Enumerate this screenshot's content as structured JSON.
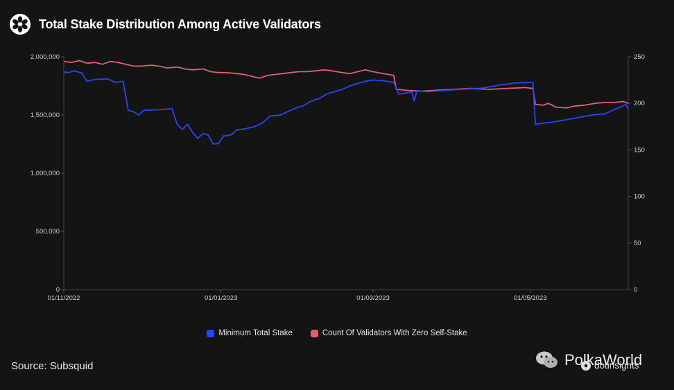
{
  "header": {
    "title": "Total Stake Distribution Among Active Validators",
    "logo_icon": "flower-icon"
  },
  "source": "Source: Subsquid",
  "watermark": {
    "text": "PolkaWorld",
    "icon": "wechat-icon"
  },
  "brand": {
    "text": "dotinsights",
    "icon": "flower-icon"
  },
  "chart_data": {
    "type": "line",
    "x_start": "2022-11-01",
    "xticks": [
      "01/11/2022",
      "01/01/2023",
      "01/03/2023",
      "01/05/2023"
    ],
    "xtick_dates": [
      "2022-11-01",
      "2023-01-01",
      "2023-03-01",
      "2023-05-01"
    ],
    "x_end": "2023-06-08",
    "y_left": {
      "ylim": [
        0,
        2000000
      ],
      "ticks": [
        "0",
        "500,000",
        "1,000,000",
        "1,500,000",
        "2,000,000"
      ]
    },
    "y_right": {
      "ylim": [
        0,
        250
      ],
      "ticks": [
        "0",
        "50",
        "100",
        "150",
        "200",
        "250"
      ]
    },
    "grid": false,
    "legend_position": "bottom",
    "series": [
      {
        "name": "Minimum Total Stake",
        "axis": "left",
        "color": "#2846f0",
        "points": [
          [
            "2022-11-01",
            1870000
          ],
          [
            "2022-11-03",
            1865000
          ],
          [
            "2022-11-05",
            1880000
          ],
          [
            "2022-11-08",
            1860000
          ],
          [
            "2022-11-10",
            1790000
          ],
          [
            "2022-11-13",
            1805000
          ],
          [
            "2022-11-18",
            1810000
          ],
          [
            "2022-11-21",
            1780000
          ],
          [
            "2022-11-24",
            1790000
          ],
          [
            "2022-11-26",
            1540000
          ],
          [
            "2022-11-28",
            1530000
          ],
          [
            "2022-11-30",
            1500000
          ],
          [
            "2022-12-02",
            1540000
          ],
          [
            "2022-12-08",
            1545000
          ],
          [
            "2022-12-13",
            1555000
          ],
          [
            "2022-12-15",
            1420000
          ],
          [
            "2022-12-17",
            1375000
          ],
          [
            "2022-12-19",
            1420000
          ],
          [
            "2022-12-21",
            1350000
          ],
          [
            "2022-12-23",
            1300000
          ],
          [
            "2022-12-25",
            1340000
          ],
          [
            "2022-12-27",
            1330000
          ],
          [
            "2022-12-29",
            1250000
          ],
          [
            "2022-12-31",
            1255000
          ],
          [
            "2023-01-02",
            1320000
          ],
          [
            "2023-01-05",
            1330000
          ],
          [
            "2023-01-07",
            1370000
          ],
          [
            "2023-01-10",
            1380000
          ],
          [
            "2023-01-14",
            1400000
          ],
          [
            "2023-01-17",
            1430000
          ],
          [
            "2023-01-20",
            1490000
          ],
          [
            "2023-01-24",
            1500000
          ],
          [
            "2023-01-27",
            1530000
          ],
          [
            "2023-01-30",
            1560000
          ],
          [
            "2023-02-02",
            1580000
          ],
          [
            "2023-02-05",
            1620000
          ],
          [
            "2023-02-08",
            1640000
          ],
          [
            "2023-02-11",
            1680000
          ],
          [
            "2023-02-14",
            1700000
          ],
          [
            "2023-02-17",
            1720000
          ],
          [
            "2023-02-20",
            1750000
          ],
          [
            "2023-02-23",
            1770000
          ],
          [
            "2023-02-26",
            1790000
          ],
          [
            "2023-03-01",
            1800000
          ],
          [
            "2023-03-05",
            1795000
          ],
          [
            "2023-03-09",
            1780000
          ],
          [
            "2023-03-11",
            1680000
          ],
          [
            "2023-03-14",
            1690000
          ],
          [
            "2023-03-16",
            1700000
          ],
          [
            "2023-03-17",
            1620000
          ],
          [
            "2023-03-18",
            1710000
          ],
          [
            "2023-03-22",
            1700000
          ],
          [
            "2023-03-28",
            1710000
          ],
          [
            "2023-04-04",
            1720000
          ],
          [
            "2023-04-12",
            1730000
          ],
          [
            "2023-04-20",
            1760000
          ],
          [
            "2023-04-25",
            1775000
          ],
          [
            "2023-05-02",
            1780000
          ],
          [
            "2023-05-03",
            1420000
          ],
          [
            "2023-05-06",
            1430000
          ],
          [
            "2023-05-10",
            1440000
          ],
          [
            "2023-05-15",
            1460000
          ],
          [
            "2023-05-20",
            1480000
          ],
          [
            "2023-05-25",
            1500000
          ],
          [
            "2023-05-30",
            1510000
          ],
          [
            "2023-06-04",
            1560000
          ],
          [
            "2023-06-07",
            1590000
          ],
          [
            "2023-06-08",
            1550000
          ]
        ]
      },
      {
        "name": "Count Of Validators With Zero Self-Stake",
        "axis": "right",
        "color": "#e0606f",
        "points": [
          [
            "2022-11-01",
            245
          ],
          [
            "2022-11-04",
            244
          ],
          [
            "2022-11-07",
            246
          ],
          [
            "2022-11-10",
            243
          ],
          [
            "2022-11-13",
            244
          ],
          [
            "2022-11-16",
            242
          ],
          [
            "2022-11-19",
            245
          ],
          [
            "2022-11-22",
            244
          ],
          [
            "2022-11-25",
            242
          ],
          [
            "2022-11-28",
            240
          ],
          [
            "2022-12-01",
            240
          ],
          [
            "2022-12-05",
            241
          ],
          [
            "2022-12-08",
            240
          ],
          [
            "2022-12-11",
            238
          ],
          [
            "2022-12-15",
            239
          ],
          [
            "2022-12-18",
            237
          ],
          [
            "2022-12-21",
            236
          ],
          [
            "2022-12-25",
            237
          ],
          [
            "2022-12-28",
            234
          ],
          [
            "2022-12-31",
            233
          ],
          [
            "2023-01-03",
            233
          ],
          [
            "2023-01-07",
            232
          ],
          [
            "2023-01-10",
            231
          ],
          [
            "2023-01-13",
            229
          ],
          [
            "2023-01-16",
            227
          ],
          [
            "2023-01-19",
            230
          ],
          [
            "2023-01-22",
            231
          ],
          [
            "2023-01-25",
            232
          ],
          [
            "2023-01-28",
            233
          ],
          [
            "2023-01-31",
            234
          ],
          [
            "2023-02-03",
            234
          ],
          [
            "2023-02-07",
            235
          ],
          [
            "2023-02-10",
            236
          ],
          [
            "2023-02-13",
            235
          ],
          [
            "2023-02-17",
            233
          ],
          [
            "2023-02-20",
            232
          ],
          [
            "2023-02-23",
            234
          ],
          [
            "2023-02-26",
            236
          ],
          [
            "2023-03-01",
            234
          ],
          [
            "2023-03-05",
            232
          ],
          [
            "2023-03-09",
            230
          ],
          [
            "2023-03-10",
            215
          ],
          [
            "2023-03-14",
            214
          ],
          [
            "2023-03-20",
            213
          ],
          [
            "2023-03-25",
            214
          ],
          [
            "2023-04-01",
            215
          ],
          [
            "2023-04-08",
            216
          ],
          [
            "2023-04-15",
            215
          ],
          [
            "2023-04-22",
            216
          ],
          [
            "2023-04-29",
            217
          ],
          [
            "2023-05-02",
            216
          ],
          [
            "2023-05-03",
            199
          ],
          [
            "2023-05-06",
            198
          ],
          [
            "2023-05-08",
            200
          ],
          [
            "2023-05-11",
            196
          ],
          [
            "2023-05-15",
            195
          ],
          [
            "2023-05-18",
            197
          ],
          [
            "2023-05-22",
            198
          ],
          [
            "2023-05-26",
            200
          ],
          [
            "2023-05-30",
            201
          ],
          [
            "2023-06-03",
            201
          ],
          [
            "2023-06-06",
            202
          ],
          [
            "2023-06-08",
            200
          ]
        ]
      }
    ]
  }
}
